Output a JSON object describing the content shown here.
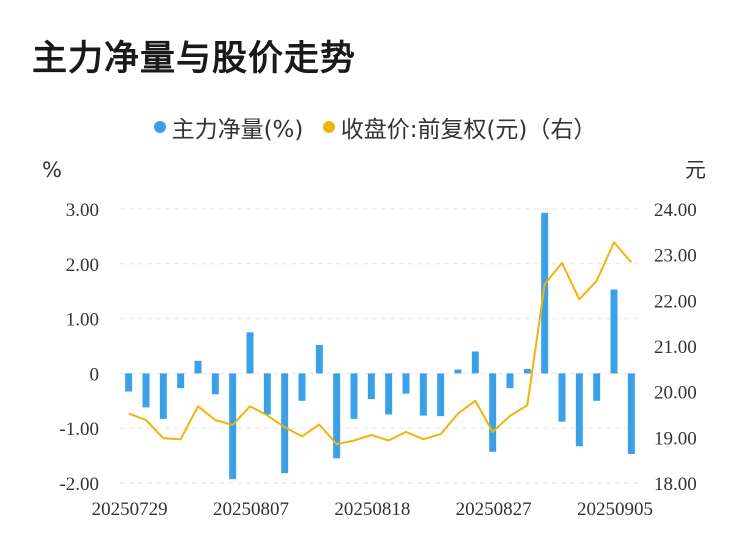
{
  "title": "主力净量与股价走势",
  "colors": {
    "bar": "#3aa0e8",
    "line": "#f0b40c",
    "grid": "#e6e6e6"
  },
  "chart_data": {
    "type": "bar+line",
    "title": "主力净量与股价走势",
    "legend": [
      "主力净量(%)",
      "收盘价:前复权(元)（右）"
    ],
    "legend_position": "top-center",
    "grid": true,
    "y_left": {
      "unit": "%",
      "range": [
        -2.0,
        3.0
      ],
      "ticks": [
        3.0,
        2.0,
        1.0,
        0,
        -1.0,
        -2.0
      ],
      "tick_labels": [
        "3.00",
        "2.00",
        "1.00",
        "0",
        "-1.00",
        "-2.00"
      ]
    },
    "y_right": {
      "unit": "元",
      "range": [
        18.0,
        24.0
      ],
      "ticks": [
        24.0,
        23.0,
        22.0,
        21.0,
        20.0,
        19.0,
        18.0
      ],
      "tick_labels": [
        "24.00",
        "23.00",
        "22.00",
        "21.00",
        "20.00",
        "19.00",
        "18.00"
      ]
    },
    "x_tick_labels": [
      "20250729",
      "20250807",
      "20250818",
      "20250827",
      "20250905"
    ],
    "x_tick_index": [
      0,
      7,
      14,
      21,
      28
    ],
    "series": [
      {
        "name": "主力净量(%)",
        "type": "bar",
        "axis": "left",
        "values": [
          -0.33,
          -0.62,
          -0.83,
          -0.27,
          0.23,
          -0.38,
          -1.93,
          0.75,
          -0.75,
          -1.82,
          -0.5,
          0.52,
          -1.55,
          -0.83,
          -0.47,
          -0.75,
          -0.37,
          -0.77,
          -0.78,
          0.07,
          0.4,
          -1.43,
          -0.27,
          0.08,
          2.93,
          -0.88,
          -1.33,
          -0.5,
          1.53,
          -1.47
        ]
      },
      {
        "name": "收盘价:前复权(元)（右）",
        "type": "line",
        "axis": "right",
        "values": [
          19.52,
          19.38,
          18.98,
          18.96,
          19.68,
          19.38,
          19.27,
          19.68,
          19.48,
          19.22,
          19.02,
          19.28,
          18.85,
          18.93,
          19.05,
          18.93,
          19.12,
          18.96,
          19.07,
          19.52,
          19.8,
          19.12,
          19.47,
          19.7,
          22.35,
          22.82,
          22.02,
          22.43,
          23.27,
          22.83
        ]
      }
    ]
  }
}
